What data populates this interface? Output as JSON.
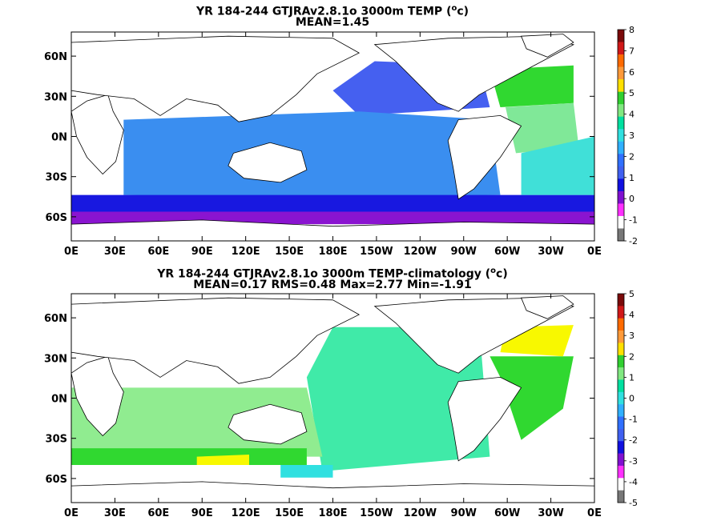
{
  "chart_data": [
    {
      "type": "heatmap",
      "title_prefix": "YR 184-244 GTJRAv2.8.1o 3000m TEMP (",
      "title_unit": "o",
      "title_suffix": "c)",
      "subtitle": "MEAN=1.45",
      "x_ticks": [
        "0E",
        "30E",
        "60E",
        "90E",
        "120E",
        "150E",
        "180E",
        "150W",
        "120W",
        "90W",
        "60W",
        "30W",
        "0E"
      ],
      "y_ticks": [
        "60N",
        "30N",
        "0N",
        "30S",
        "60S"
      ],
      "colorbar_ticks": [
        "8",
        "7",
        "6",
        "5",
        "4",
        "3",
        "2",
        "1",
        "0",
        "-1",
        "-2"
      ],
      "colorbar_colors": [
        "#7a0a0a",
        "#d01818",
        "#ff6a00",
        "#ff9a3a",
        "#ffe000",
        "#30d030",
        "#80e880",
        "#00e0a0",
        "#30e0e0",
        "#30b0ff",
        "#3070ff",
        "#4060f0",
        "#1010e0",
        "#8010d0",
        "#ff30ff",
        "#ffffff",
        "#777777"
      ],
      "colorbar_range": [
        -2,
        8
      ],
      "regions": [
        {
          "name": "north-pacific",
          "level": 1.2,
          "color": "#4560f0"
        },
        {
          "name": "indo-pacific",
          "level": 1.7,
          "color": "#3a8ef0"
        },
        {
          "name": "southern-ocean-band",
          "level": 0.4,
          "color": "#1818e0"
        },
        {
          "name": "antarctic-margin",
          "level": -0.5,
          "color": "#8a14d0"
        },
        {
          "name": "north-atlantic",
          "level": 3.6,
          "color": "#30d830"
        },
        {
          "name": "atlantic-interior",
          "level": 2.7,
          "color": "#80e898"
        },
        {
          "name": "south-atlantic",
          "level": 2.2,
          "color": "#40e0d8"
        }
      ]
    },
    {
      "type": "heatmap",
      "title_prefix": "YR 184-244 GTJRAv2.8.1o 3000m TEMP-climatology (",
      "title_unit": "o",
      "title_suffix": "c)",
      "subtitle": "MEAN=0.17   RMS=0.48   Max=2.77   Min=-1.91",
      "x_ticks": [
        "0E",
        "30E",
        "60E",
        "90E",
        "120E",
        "150E",
        "180E",
        "150W",
        "120W",
        "90W",
        "60W",
        "30W",
        "0E"
      ],
      "y_ticks": [
        "60N",
        "30N",
        "0N",
        "30S",
        "60S"
      ],
      "colorbar_ticks": [
        "5",
        "4",
        "3",
        "2",
        "1",
        "0",
        "-1",
        "-2",
        "-3",
        "-4",
        "-5"
      ],
      "colorbar_colors": [
        "#7a0a0a",
        "#d01818",
        "#ff6a00",
        "#ff9a3a",
        "#ffe000",
        "#30d030",
        "#80e880",
        "#00e0a0",
        "#30e0e0",
        "#30b0ff",
        "#3070ff",
        "#4060f0",
        "#1010e0",
        "#8010d0",
        "#ff30ff",
        "#ffffff",
        "#777777"
      ],
      "colorbar_range": [
        -5,
        5
      ],
      "regions": [
        {
          "name": "pacific",
          "level": 0.2,
          "color": "#40eaa8"
        },
        {
          "name": "indian-atlantic-south",
          "level": 0.7,
          "color": "#90ec90"
        },
        {
          "name": "southern-band",
          "level": 1.2,
          "color": "#30d830"
        },
        {
          "name": "north-atlantic",
          "level": 1.4,
          "color": "#30d830"
        },
        {
          "name": "labrador",
          "level": 2.2,
          "color": "#f8f800"
        },
        {
          "name": "south-indian-yellow",
          "level": 2.3,
          "color": "#f8f800"
        },
        {
          "name": "drake",
          "level": -0.4,
          "color": "#30e0e0"
        }
      ]
    }
  ]
}
